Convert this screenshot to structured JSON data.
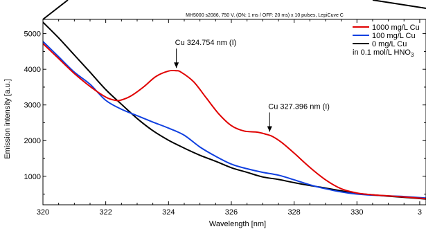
{
  "chart_data": {
    "type": "line",
    "subtitle": "MH5000 s2086, 750 V, (ON: 1 ms / OFF: 20 ms) x 10 pulses, LepiCuve C",
    "xlabel": "Wavelength [nm]",
    "ylabel": "Emission intensity [a.u.]",
    "xlim": [
      320,
      332.2
    ],
    "ylim": [
      200,
      5400
    ],
    "x_ticks": [
      "320",
      "322",
      "324",
      "326",
      "328",
      "330",
      "3"
    ],
    "y_ticks": [
      "1000",
      "2000",
      "3000",
      "4000",
      "5000"
    ],
    "grid": false,
    "legend": {
      "position": "top-right",
      "note_prefix": "in 0.1 mol/L HNO",
      "note_subscript": "3"
    },
    "annotations": [
      {
        "text": "Cu 324.754 nm (I)",
        "x": 324.25,
        "y": 3960
      },
      {
        "text": "Cu 327.396 nm (I)",
        "x": 327.22,
        "y": 2170
      }
    ],
    "series": [
      {
        "name": "1000 mg/L Cu",
        "color": "#e00000",
        "x": [
          320,
          320.5,
          321,
          321.5,
          322,
          322.3,
          322.5,
          322.8,
          323.2,
          323.6,
          324,
          324.25,
          324.4,
          324.8,
          325.2,
          325.6,
          326,
          326.4,
          326.8,
          327.1,
          327.3,
          327.6,
          328,
          328.5,
          329,
          329.5,
          330,
          330.5,
          331,
          331.5,
          332.2
        ],
        "y": [
          4720,
          4300,
          3880,
          3520,
          3220,
          3130,
          3140,
          3250,
          3500,
          3800,
          3950,
          3960,
          3920,
          3650,
          3200,
          2750,
          2420,
          2270,
          2240,
          2180,
          2120,
          1950,
          1650,
          1250,
          900,
          650,
          530,
          480,
          450,
          420,
          370
        ]
      },
      {
        "name": "100 mg/L Cu",
        "color": "#1040e0",
        "x": [
          320,
          320.5,
          321,
          321.5,
          322,
          322.5,
          323,
          323.5,
          324,
          324.5,
          325,
          325.5,
          326,
          326.5,
          327,
          327.5,
          328,
          328.5,
          329,
          329.5,
          330,
          330.5,
          331,
          331.5,
          332.2
        ],
        "y": [
          4780,
          4350,
          3920,
          3580,
          3130,
          2880,
          2700,
          2520,
          2350,
          2150,
          1820,
          1560,
          1340,
          1210,
          1110,
          1030,
          900,
          760,
          650,
          560,
          500,
          470,
          450,
          430,
          390
        ]
      },
      {
        "name": "0 mg/L Cu",
        "color": "#000000",
        "x": [
          320,
          320.5,
          321,
          321.5,
          322,
          322.5,
          323,
          323.5,
          324,
          324.5,
          325,
          325.5,
          326,
          326.5,
          327,
          327.5,
          328,
          328.5,
          329,
          329.5,
          330,
          330.5,
          331,
          331.5,
          332.2
        ],
        "y": [
          5320,
          4880,
          4400,
          3920,
          3430,
          3020,
          2620,
          2280,
          2010,
          1790,
          1590,
          1420,
          1240,
          1110,
          980,
          910,
          820,
          740,
          670,
          590,
          520,
          480,
          440,
          410,
          360
        ]
      }
    ]
  }
}
